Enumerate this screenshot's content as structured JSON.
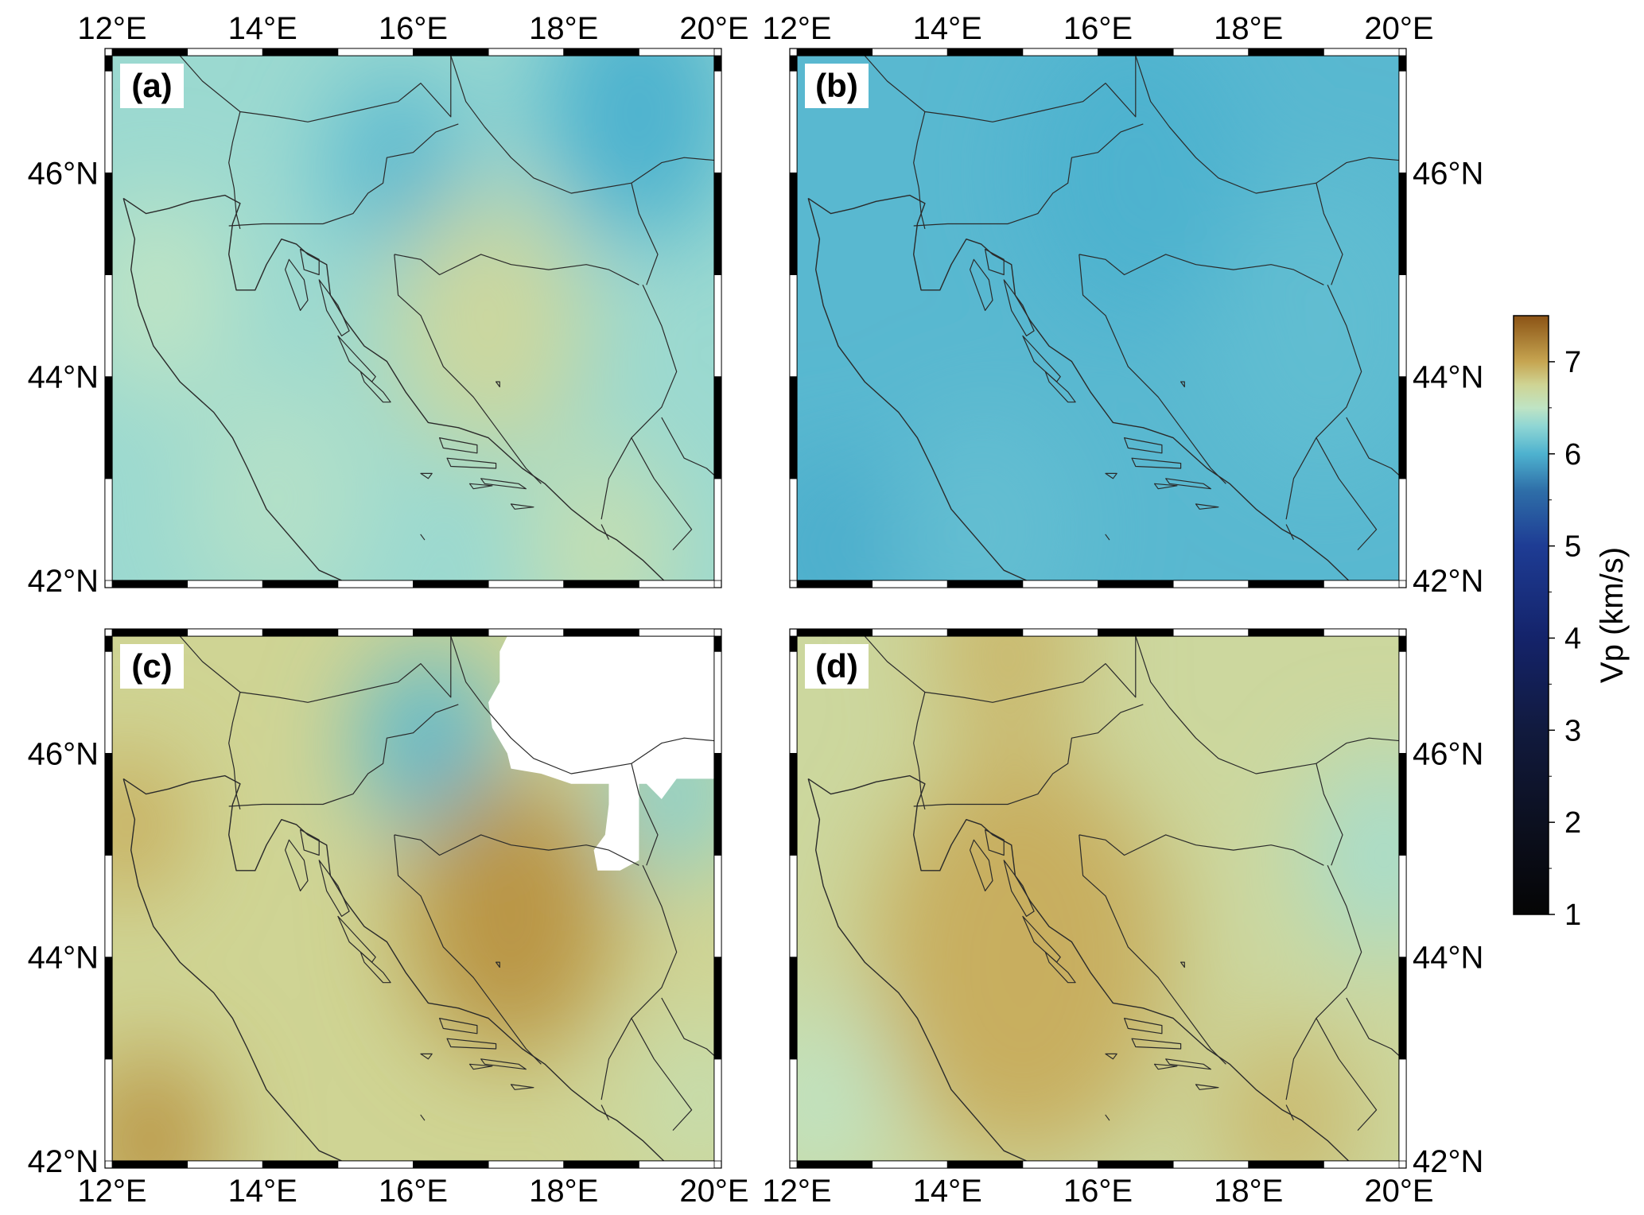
{
  "figure": {
    "panels": [
      {
        "label": "(a)",
        "lon_ticks_top": [
          "12°E",
          "14°E",
          "16°E",
          "18°E",
          "20°E"
        ],
        "lon_ticks_bottom": [],
        "lat_ticks_left": [
          "42°N",
          "44°N",
          "46°N"
        ],
        "lat_ticks_right": [],
        "field": {
          "base": 6.35,
          "anomalies": [
            {
              "lon": 15.8,
              "lat": 46.1,
              "dv": -0.3,
              "r": 0.9
            },
            {
              "lon": 19.0,
              "lat": 46.6,
              "dv": -0.35,
              "r": 1.3
            },
            {
              "lon": 17.0,
              "lat": 44.5,
              "dv": 0.35,
              "r": 1.3
            },
            {
              "lon": 12.6,
              "lat": 44.8,
              "dv": 0.15,
              "r": 1.0
            },
            {
              "lon": 18.5,
              "lat": 42.3,
              "dv": 0.25,
              "r": 1.0
            },
            {
              "lon": 14.2,
              "lat": 42.8,
              "dv": 0.1,
              "r": 1.2
            }
          ]
        }
      },
      {
        "label": "(b)",
        "lon_ticks_top": [
          "12°E",
          "14°E",
          "16°E",
          "18°E",
          "20°E"
        ],
        "lon_ticks_bottom": [],
        "lat_ticks_left": [],
        "lat_ticks_right": [
          "42°N",
          "44°N",
          "46°N"
        ],
        "field": {
          "base": 6.05,
          "anomalies": [
            {
              "lon": 16.5,
              "lat": 46.0,
              "dv": -0.05,
              "r": 1.5
            },
            {
              "lon": 12.5,
              "lat": 42.3,
              "dv": -0.08,
              "r": 1.0
            },
            {
              "lon": 14.5,
              "lat": 42.5,
              "dv": 0.05,
              "r": 1.2
            },
            {
              "lon": 19.0,
              "lat": 44.5,
              "dv": 0.04,
              "r": 1.5
            }
          ]
        }
      },
      {
        "label": "(c)",
        "lon_ticks_top": [],
        "lon_ticks_bottom": [
          "12°E",
          "14°E",
          "16°E",
          "18°E",
          "20°E"
        ],
        "lat_ticks_left": [
          "42°N",
          "44°N",
          "46°N"
        ],
        "lat_ticks_right": [],
        "field": {
          "base": 6.75,
          "anomalies": [
            {
              "lon": 16.2,
              "lat": 46.1,
              "dv": -0.7,
              "r": 0.9
            },
            {
              "lon": 17.3,
              "lat": 44.4,
              "dv": 0.35,
              "r": 1.4
            },
            {
              "lon": 12.5,
              "lat": 42.2,
              "dv": 0.35,
              "r": 0.9
            },
            {
              "lon": 12.2,
              "lat": 45.3,
              "dv": 0.25,
              "r": 0.7
            },
            {
              "lon": 19.5,
              "lat": 45.6,
              "dv": -0.5,
              "r": 0.8
            },
            {
              "lon": 19.8,
              "lat": 42.6,
              "dv": -0.15,
              "r": 0.8
            }
          ],
          "mask_polygon": [
            [
              17.25,
              47.15
            ],
            [
              20.05,
              47.15
            ],
            [
              20.05,
              45.75
            ],
            [
              19.5,
              45.75
            ],
            [
              19.3,
              45.55
            ],
            [
              19.1,
              45.7
            ],
            [
              19.0,
              45.7
            ],
            [
              19.0,
              44.95
            ],
            [
              18.75,
              44.85
            ],
            [
              18.45,
              44.85
            ],
            [
              18.4,
              45.05
            ],
            [
              18.55,
              45.2
            ],
            [
              18.6,
              45.5
            ],
            [
              18.6,
              45.7
            ],
            [
              18.1,
              45.7
            ],
            [
              17.7,
              45.8
            ],
            [
              17.3,
              45.85
            ],
            [
              17.25,
              46.0
            ],
            [
              17.05,
              46.25
            ],
            [
              17.0,
              46.5
            ],
            [
              17.15,
              46.7
            ],
            [
              17.15,
              47.0
            ]
          ]
        }
      },
      {
        "label": "(d)",
        "lon_ticks_top": [],
        "lon_ticks_bottom": [
          "12°E",
          "14°E",
          "16°E",
          "18°E",
          "20°E"
        ],
        "lat_ticks_left": [],
        "lat_ticks_right": [
          "42°N",
          "44°N",
          "46°N"
        ],
        "field": {
          "base": 6.7,
          "anomalies": [
            {
              "lon": 15.0,
              "lat": 44.0,
              "dv": 0.25,
              "r": 2.0
            },
            {
              "lon": 14.8,
              "lat": 47.0,
              "dv": 0.2,
              "r": 1.0
            },
            {
              "lon": 12.3,
              "lat": 42.6,
              "dv": -0.2,
              "r": 0.9
            },
            {
              "lon": 19.8,
              "lat": 45.0,
              "dv": -0.3,
              "r": 1.0
            },
            {
              "lon": 18.5,
              "lat": 42.4,
              "dv": 0.2,
              "r": 0.9
            }
          ]
        }
      }
    ],
    "colorbar": {
      "label": "Vp (km/s)",
      "min": 1,
      "max": 7.5,
      "ticks": [
        1,
        2,
        3,
        4,
        5,
        6,
        7
      ],
      "tick_labels": [
        "1",
        "2",
        "3",
        "4",
        "5",
        "6",
        "7"
      ],
      "colormap": [
        {
          "v": 1.0,
          "color": "#050505"
        },
        {
          "v": 2.0,
          "color": "#0c1020"
        },
        {
          "v": 3.0,
          "color": "#111a3e"
        },
        {
          "v": 4.0,
          "color": "#14236a"
        },
        {
          "v": 5.0,
          "color": "#1e3c94"
        },
        {
          "v": 5.6,
          "color": "#2e6ea8"
        },
        {
          "v": 6.0,
          "color": "#4eb2cf"
        },
        {
          "v": 6.3,
          "color": "#8fd6d4"
        },
        {
          "v": 6.5,
          "color": "#bfe4c4"
        },
        {
          "v": 6.75,
          "color": "#cfd494"
        },
        {
          "v": 7.0,
          "color": "#c6a551"
        },
        {
          "v": 7.5,
          "color": "#8b5315"
        }
      ]
    },
    "map_extent": {
      "lon": [
        12,
        20
      ],
      "lat": [
        42,
        47.15
      ]
    },
    "borders": [
      [
        [
          12.9,
          47.15
        ],
        [
          13.2,
          46.9
        ],
        [
          13.7,
          46.6
        ],
        [
          14.2,
          46.55
        ],
        [
          14.6,
          46.5
        ],
        [
          15.2,
          46.6
        ],
        [
          15.8,
          46.7
        ],
        [
          16.1,
          46.88
        ],
        [
          16.5,
          46.55
        ],
        [
          16.5,
          47.15
        ]
      ],
      [
        [
          13.7,
          46.6
        ],
        [
          13.6,
          46.3
        ],
        [
          13.55,
          46.1
        ],
        [
          13.62,
          45.85
        ],
        [
          13.65,
          45.6
        ],
        [
          13.7,
          45.45
        ]
      ],
      [
        [
          13.55,
          45.48
        ],
        [
          14.0,
          45.5
        ],
        [
          14.4,
          45.5
        ],
        [
          14.8,
          45.5
        ],
        [
          15.2,
          45.6
        ],
        [
          15.4,
          45.8
        ],
        [
          15.6,
          45.9
        ],
        [
          15.65,
          46.15
        ],
        [
          16.0,
          46.2
        ],
        [
          16.3,
          46.4
        ],
        [
          16.6,
          46.48
        ]
      ],
      [
        [
          16.5,
          47.15
        ],
        [
          16.7,
          46.7
        ],
        [
          16.95,
          46.45
        ],
        [
          17.3,
          46.15
        ],
        [
          17.6,
          45.95
        ],
        [
          18.1,
          45.8
        ],
        [
          18.5,
          45.85
        ],
        [
          18.9,
          45.9
        ]
      ],
      [
        [
          18.9,
          45.9
        ],
        [
          19.0,
          45.6
        ],
        [
          19.25,
          45.2
        ],
        [
          19.1,
          44.9
        ]
      ],
      [
        [
          18.9,
          45.9
        ],
        [
          19.3,
          46.1
        ],
        [
          19.6,
          46.15
        ],
        [
          20.05,
          46.12
        ]
      ],
      [
        [
          15.75,
          45.2
        ],
        [
          16.1,
          45.15
        ],
        [
          16.35,
          45.0
        ],
        [
          16.9,
          45.2
        ],
        [
          17.3,
          45.1
        ],
        [
          17.8,
          45.05
        ],
        [
          18.3,
          45.1
        ],
        [
          18.6,
          45.05
        ],
        [
          19.0,
          44.9
        ]
      ],
      [
        [
          15.75,
          45.2
        ],
        [
          15.8,
          44.8
        ],
        [
          16.1,
          44.6
        ],
        [
          16.4,
          44.1
        ],
        [
          16.8,
          43.8
        ],
        [
          17.1,
          43.5
        ],
        [
          17.5,
          43.1
        ],
        [
          17.7,
          42.95
        ]
      ],
      [
        [
          19.05,
          44.9
        ],
        [
          19.3,
          44.5
        ],
        [
          19.5,
          44.05
        ],
        [
          19.3,
          43.7
        ],
        [
          18.9,
          43.4
        ],
        [
          18.6,
          43.0
        ],
        [
          18.5,
          42.6
        ]
      ],
      [
        [
          19.3,
          43.6
        ],
        [
          19.6,
          43.2
        ],
        [
          19.9,
          43.1
        ],
        [
          20.05,
          43.0
        ]
      ],
      [
        [
          18.5,
          42.55
        ],
        [
          18.6,
          42.4
        ]
      ],
      [
        [
          18.9,
          43.4
        ],
        [
          19.2,
          43.0
        ],
        [
          19.5,
          42.7
        ],
        [
          19.7,
          42.5
        ],
        [
          19.45,
          42.3
        ]
      ]
    ],
    "coastlines": [
      [
        [
          12.15,
          45.75
        ],
        [
          12.45,
          45.6
        ],
        [
          12.75,
          45.65
        ],
        [
          13.05,
          45.72
        ],
        [
          13.5,
          45.78
        ],
        [
          13.7,
          45.7
        ],
        [
          13.6,
          45.5
        ],
        [
          13.55,
          45.2
        ],
        [
          13.65,
          44.85
        ],
        [
          13.9,
          44.85
        ],
        [
          14.05,
          45.1
        ],
        [
          14.25,
          45.35
        ],
        [
          14.45,
          45.3
        ],
        [
          14.6,
          45.2
        ],
        [
          14.85,
          45.1
        ],
        [
          14.9,
          44.8
        ],
        [
          15.1,
          44.55
        ],
        [
          15.35,
          44.3
        ],
        [
          15.65,
          44.15
        ],
        [
          15.9,
          43.85
        ],
        [
          16.2,
          43.55
        ],
        [
          16.6,
          43.5
        ],
        [
          17.0,
          43.4
        ],
        [
          17.45,
          43.1
        ],
        [
          17.75,
          42.95
        ],
        [
          18.1,
          42.7
        ],
        [
          18.45,
          42.5
        ],
        [
          18.7,
          42.4
        ],
        [
          19.05,
          42.2
        ],
        [
          19.4,
          41.95
        ]
      ],
      [
        [
          12.15,
          45.75
        ],
        [
          12.3,
          45.35
        ],
        [
          12.25,
          45.05
        ],
        [
          12.35,
          44.7
        ],
        [
          12.55,
          44.3
        ],
        [
          12.9,
          43.95
        ],
        [
          13.35,
          43.65
        ],
        [
          13.6,
          43.4
        ],
        [
          13.8,
          43.1
        ],
        [
          14.05,
          42.7
        ],
        [
          14.4,
          42.4
        ],
        [
          14.75,
          42.1
        ],
        [
          15.05,
          42.0
        ]
      ]
    ],
    "islands": [
      [
        [
          14.35,
          45.15
        ],
        [
          14.55,
          44.95
        ],
        [
          14.6,
          44.75
        ],
        [
          14.5,
          44.65
        ],
        [
          14.4,
          44.85
        ],
        [
          14.3,
          45.05
        ]
      ],
      [
        [
          14.5,
          45.25
        ],
        [
          14.75,
          45.15
        ],
        [
          14.75,
          45.0
        ],
        [
          14.55,
          45.05
        ]
      ],
      [
        [
          14.75,
          44.95
        ],
        [
          15.0,
          44.7
        ],
        [
          15.15,
          44.45
        ],
        [
          15.05,
          44.4
        ],
        [
          14.85,
          44.65
        ]
      ],
      [
        [
          15.0,
          44.4
        ],
        [
          15.25,
          44.2
        ],
        [
          15.5,
          44.0
        ],
        [
          15.45,
          43.95
        ],
        [
          15.15,
          44.15
        ]
      ],
      [
        [
          15.3,
          44.05
        ],
        [
          15.6,
          43.85
        ],
        [
          15.7,
          43.75
        ],
        [
          15.6,
          43.75
        ],
        [
          15.35,
          43.95
        ]
      ],
      [
        [
          16.35,
          43.4
        ],
        [
          16.85,
          43.33
        ],
        [
          16.85,
          43.25
        ],
        [
          16.4,
          43.3
        ]
      ],
      [
        [
          16.45,
          43.2
        ],
        [
          17.1,
          43.15
        ],
        [
          17.1,
          43.1
        ],
        [
          16.5,
          43.12
        ]
      ],
      [
        [
          16.9,
          43.0
        ],
        [
          17.4,
          42.95
        ],
        [
          17.5,
          42.9
        ],
        [
          16.95,
          42.95
        ]
      ],
      [
        [
          16.1,
          43.05
        ],
        [
          16.25,
          43.05
        ],
        [
          16.2,
          43.0
        ]
      ],
      [
        [
          16.75,
          42.95
        ],
        [
          17.05,
          42.93
        ],
        [
          16.8,
          42.9
        ]
      ],
      [
        [
          17.3,
          42.75
        ],
        [
          17.6,
          42.72
        ],
        [
          17.35,
          42.7
        ]
      ],
      [
        [
          16.1,
          42.45
        ],
        [
          16.15,
          42.4
        ]
      ],
      [
        [
          17.1,
          43.95
        ],
        [
          17.15,
          43.95
        ],
        [
          17.15,
          43.9
        ]
      ]
    ]
  }
}
